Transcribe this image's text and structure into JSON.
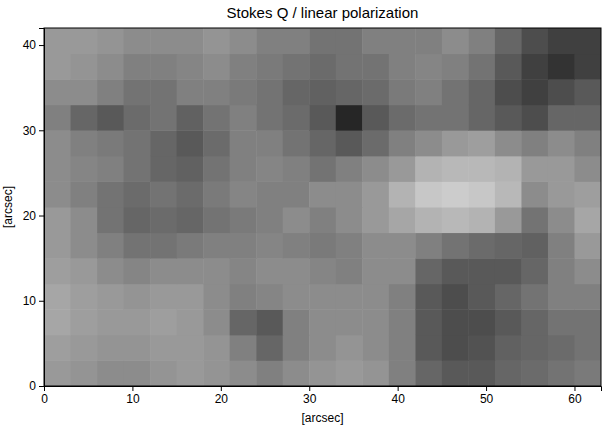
{
  "chart_data": {
    "type": "heatmap",
    "title": "Stokes Q / linear polarization",
    "x_label": "[arcsec]",
    "y_label": "[arcsec]",
    "xlim": [
      0,
      63
    ],
    "ylim": [
      0,
      42
    ],
    "xticks": [
      0,
      10,
      20,
      30,
      40,
      50,
      60
    ],
    "yticks": [
      0,
      10,
      20,
      30,
      40
    ],
    "x_bins": [
      0,
      3,
      6,
      9,
      12,
      15,
      18,
      21,
      24,
      27,
      30,
      33,
      36,
      39,
      42,
      45,
      48,
      51,
      54,
      57,
      60,
      63
    ],
    "y_bins": [
      0,
      3,
      6,
      9,
      12,
      15,
      18,
      21,
      24,
      27,
      30,
      33,
      36,
      39,
      42
    ],
    "zlim": [
      0,
      1
    ],
    "cells": [
      [
        0.6,
        0.58,
        0.55,
        0.55,
        0.58,
        0.6,
        0.58,
        0.55,
        0.5,
        0.55,
        0.58,
        0.6,
        0.58,
        0.5,
        0.4,
        0.35,
        0.35,
        0.4,
        0.42,
        0.45,
        0.48
      ],
      [
        0.62,
        0.6,
        0.58,
        0.58,
        0.6,
        0.6,
        0.58,
        0.5,
        0.4,
        0.5,
        0.55,
        0.58,
        0.55,
        0.5,
        0.35,
        0.3,
        0.32,
        0.38,
        0.4,
        0.42,
        0.45
      ],
      [
        0.65,
        0.62,
        0.6,
        0.6,
        0.62,
        0.6,
        0.55,
        0.4,
        0.35,
        0.5,
        0.55,
        0.55,
        0.55,
        0.5,
        0.35,
        0.3,
        0.3,
        0.35,
        0.4,
        0.45,
        0.45
      ],
      [
        0.65,
        0.62,
        0.6,
        0.58,
        0.6,
        0.6,
        0.55,
        0.5,
        0.52,
        0.55,
        0.55,
        0.55,
        0.55,
        0.5,
        0.35,
        0.3,
        0.35,
        0.4,
        0.45,
        0.5,
        0.5
      ],
      [
        0.62,
        0.6,
        0.55,
        0.52,
        0.55,
        0.55,
        0.55,
        0.52,
        0.55,
        0.55,
        0.52,
        0.5,
        0.55,
        0.55,
        0.4,
        0.35,
        0.35,
        0.35,
        0.4,
        0.5,
        0.55
      ],
      [
        0.6,
        0.55,
        0.5,
        0.45,
        0.45,
        0.48,
        0.5,
        0.5,
        0.52,
        0.5,
        0.48,
        0.5,
        0.55,
        0.55,
        0.5,
        0.45,
        0.42,
        0.4,
        0.38,
        0.5,
        0.6
      ],
      [
        0.6,
        0.55,
        0.45,
        0.4,
        0.42,
        0.4,
        0.45,
        0.48,
        0.5,
        0.55,
        0.5,
        0.55,
        0.6,
        0.65,
        0.7,
        0.72,
        0.7,
        0.6,
        0.45,
        0.55,
        0.65
      ],
      [
        0.55,
        0.5,
        0.45,
        0.42,
        0.45,
        0.42,
        0.48,
        0.52,
        0.5,
        0.5,
        0.55,
        0.55,
        0.6,
        0.7,
        0.78,
        0.8,
        0.78,
        0.72,
        0.55,
        0.6,
        0.62
      ],
      [
        0.55,
        0.52,
        0.5,
        0.45,
        0.4,
        0.38,
        0.45,
        0.5,
        0.52,
        0.5,
        0.45,
        0.5,
        0.55,
        0.6,
        0.7,
        0.72,
        0.72,
        0.7,
        0.6,
        0.6,
        0.55
      ],
      [
        0.55,
        0.5,
        0.48,
        0.45,
        0.4,
        0.35,
        0.42,
        0.5,
        0.5,
        0.45,
        0.4,
        0.35,
        0.42,
        0.5,
        0.55,
        0.6,
        0.62,
        0.55,
        0.5,
        0.55,
        0.5
      ],
      [
        0.5,
        0.4,
        0.35,
        0.42,
        0.45,
        0.38,
        0.45,
        0.5,
        0.45,
        0.42,
        0.35,
        0.15,
        0.35,
        0.42,
        0.45,
        0.45,
        0.4,
        0.35,
        0.3,
        0.4,
        0.4
      ],
      [
        0.55,
        0.55,
        0.5,
        0.45,
        0.45,
        0.5,
        0.5,
        0.48,
        0.45,
        0.4,
        0.38,
        0.4,
        0.42,
        0.48,
        0.5,
        0.45,
        0.4,
        0.3,
        0.25,
        0.3,
        0.35
      ],
      [
        0.6,
        0.58,
        0.55,
        0.5,
        0.5,
        0.52,
        0.55,
        0.5,
        0.48,
        0.45,
        0.42,
        0.45,
        0.45,
        0.5,
        0.52,
        0.5,
        0.45,
        0.35,
        0.25,
        0.2,
        0.25
      ],
      [
        0.6,
        0.6,
        0.58,
        0.55,
        0.55,
        0.55,
        0.58,
        0.55,
        0.5,
        0.5,
        0.45,
        0.45,
        0.5,
        0.5,
        0.5,
        0.55,
        0.5,
        0.4,
        0.3,
        0.25,
        0.25
      ]
    ]
  }
}
